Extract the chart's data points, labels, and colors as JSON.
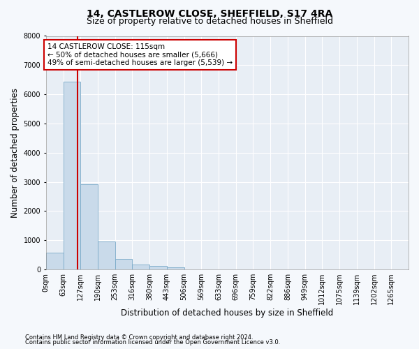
{
  "title": "14, CASTLEROW CLOSE, SHEFFIELD, S17 4RA",
  "subtitle": "Size of property relative to detached houses in Sheffield",
  "xlabel": "Distribution of detached houses by size in Sheffield",
  "ylabel": "Number of detached properties",
  "footer_line1": "Contains HM Land Registry data © Crown copyright and database right 2024.",
  "footer_line2": "Contains public sector information licensed under the Open Government Licence v3.0.",
  "bar_labels": [
    "0sqm",
    "63sqm",
    "127sqm",
    "190sqm",
    "253sqm",
    "316sqm",
    "380sqm",
    "443sqm",
    "506sqm",
    "569sqm",
    "633sqm",
    "696sqm",
    "759sqm",
    "822sqm",
    "886sqm",
    "949sqm",
    "1012sqm",
    "1075sqm",
    "1139sqm",
    "1202sqm",
    "1265sqm"
  ],
  "bar_values": [
    570,
    6430,
    2910,
    970,
    360,
    165,
    110,
    80,
    0,
    0,
    0,
    0,
    0,
    0,
    0,
    0,
    0,
    0,
    0,
    0,
    0
  ],
  "bar_color": "#c9daea",
  "bar_edge_color": "#7aaac8",
  "property_label": "14 CASTLEROW CLOSE: 115sqm",
  "annotation_line1": "← 50% of detached houses are smaller (5,666)",
  "annotation_line2": "49% of semi-detached houses are larger (5,539) →",
  "annotation_box_color": "#ffffff",
  "annotation_box_edge_color": "#cc0000",
  "line_color": "#cc0000",
  "ylim": [
    0,
    8000
  ],
  "bg_color": "#f5f8fc",
  "plot_bg_color": "#e8eef5",
  "grid_color": "#ffffff",
  "title_fontsize": 10,
  "subtitle_fontsize": 9,
  "axis_label_fontsize": 8.5,
  "tick_fontsize": 7,
  "annotation_fontsize": 7.5,
  "footer_fontsize": 6
}
